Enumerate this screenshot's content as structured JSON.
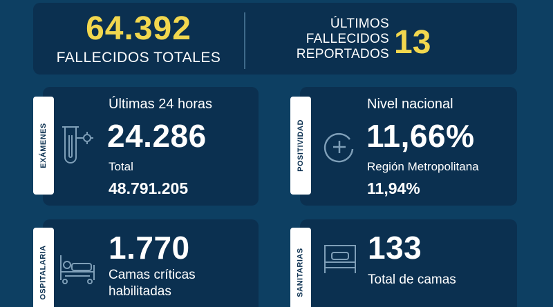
{
  "top": {
    "total_deaths_value": "64.392",
    "total_deaths_label": "FALLECIDOS TOTALES",
    "last_deaths_label_line1": "ÚLTIMOS",
    "last_deaths_label_line2": "FALLECIDOS",
    "last_deaths_label_line3": "REPORTADOS",
    "last_deaths_value": "13"
  },
  "examenes": {
    "tab": "EXÁMENES",
    "label_24h": "Últimas 24 horas",
    "value_24h": "24.286",
    "label_total": "Total",
    "value_total": "48.791.205",
    "icon": "test-tube-icon"
  },
  "positividad": {
    "tab": "POSITIVIDAD",
    "label_national": "Nivel nacional",
    "value_national": "11,66%",
    "label_region": "Región Metropolitana",
    "value_region": "11,94%",
    "icon": "plus-circle-icon"
  },
  "hospitalaria": {
    "tab": "OSPITALARIA",
    "value": "1.770",
    "label_line1": "Camas críticas",
    "label_line2": "habilitadas",
    "icon": "hospital-bed-icon"
  },
  "sanitarias": {
    "tab": "SANITARIAS",
    "value": "133",
    "label": "Total de camas",
    "icon": "bed-icon"
  },
  "colors": {
    "background": "#0d3f62",
    "panel": "#0b3050",
    "accent_yellow": "#f2d74e",
    "text": "#ffffff"
  }
}
